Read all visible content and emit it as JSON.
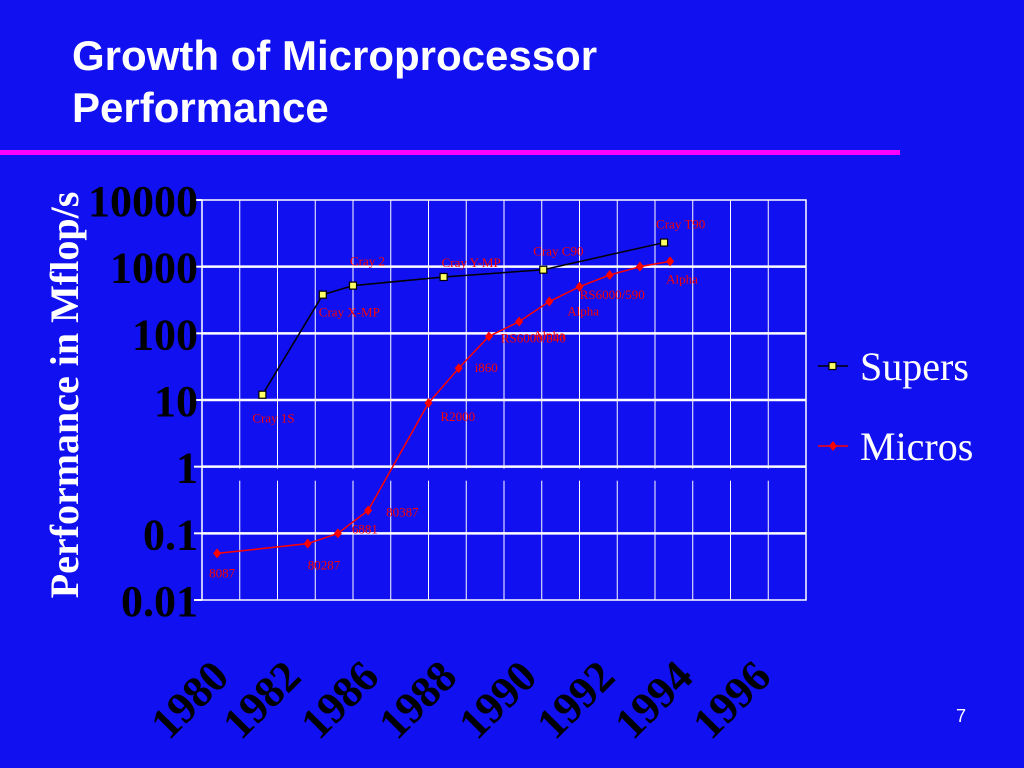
{
  "slide": {
    "title_line1": "Growth of Microprocessor",
    "title_line2": "Performance",
    "page_number": "7",
    "accent_rule_color": "#ff00ff",
    "background_color": "#1010f0"
  },
  "chart_data": {
    "type": "line",
    "ylabel": "Performance in Mflop/s",
    "yscale": "log",
    "ylim": [
      0.01,
      10000
    ],
    "ytick_values": [
      0.01,
      0.1,
      1,
      10,
      100,
      1000,
      10000
    ],
    "yticks": [
      "0.01",
      "0.1",
      "1",
      "10",
      "100",
      "1000",
      "10000"
    ],
    "xlim": [
      1978.5,
      1998.5
    ],
    "xtick_values": [
      1980,
      1982,
      1986,
      1988,
      1990,
      1992,
      1994,
      1996
    ],
    "xticks": [
      "1980",
      "1982",
      "1986",
      "1988",
      "1990",
      "1992",
      "1994",
      "1996"
    ],
    "grid": true,
    "legend_position": "right",
    "series": [
      {
        "name": "Supers",
        "color": "#000000",
        "marker": "square",
        "label_color": "#ff0000",
        "points": [
          {
            "x": 1980.5,
            "y": 12,
            "label": "Cray 1S"
          },
          {
            "x": 1982.5,
            "y": 380,
            "label": "Cray X-MP"
          },
          {
            "x": 1983.5,
            "y": 520,
            "label": "Cray 2"
          },
          {
            "x": 1986.5,
            "y": 700,
            "label": "Cray Y-MP"
          },
          {
            "x": 1989.8,
            "y": 900,
            "label": "Cray C90"
          },
          {
            "x": 1993.8,
            "y": 2300,
            "label": "Cray T90"
          }
        ]
      },
      {
        "name": "Micros",
        "color": "#ff0000",
        "marker": "diamond",
        "label_color": "#ff0000",
        "points": [
          {
            "x": 1979,
            "y": 0.05,
            "label": "8087"
          },
          {
            "x": 1982,
            "y": 0.07,
            "label": "80287"
          },
          {
            "x": 1983,
            "y": 0.1,
            "label": "6881"
          },
          {
            "x": 1984,
            "y": 0.22,
            "label": "80387"
          },
          {
            "x": 1986,
            "y": 9,
            "label": "R2000"
          },
          {
            "x": 1987,
            "y": 30,
            "label": "i860"
          },
          {
            "x": 1988,
            "y": 90,
            "label": "RS6000/540"
          },
          {
            "x": 1989,
            "y": 150,
            "label": "Alpha"
          },
          {
            "x": 1990,
            "y": 300,
            "label": "Alpha"
          },
          {
            "x": 1991,
            "y": 500,
            "label": ""
          },
          {
            "x": 1992,
            "y": 750,
            "label": "RS6000/590"
          },
          {
            "x": 1993,
            "y": 1000,
            "label": ""
          },
          {
            "x": 1994,
            "y": 1200,
            "label": "Alpha"
          }
        ]
      }
    ]
  }
}
